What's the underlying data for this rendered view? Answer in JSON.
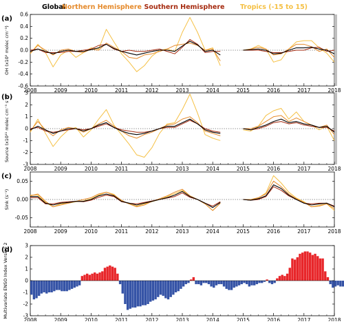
{
  "legend": [
    {
      "label": "Global",
      "color": "#000000"
    },
    {
      "label": "Northern Hemisphere",
      "color": "#e58a2b"
    },
    {
      "label": "Southern Hemisphere",
      "color": "#a52a0f"
    },
    {
      "label": "Tropics (-15 to 15)",
      "color": "#f5c044"
    }
  ],
  "colors": {
    "global": "#000000",
    "nh": "#e58a2b",
    "sh": "#a52a0f",
    "tropics": "#f5c044",
    "enso_pos": "#e8262a",
    "enso_neg": "#3553a6"
  },
  "x_ticks": [
    "2008",
    "2009",
    "2010",
    "2011",
    "2012",
    "2013",
    "2014",
    "2015",
    "2016",
    "2017",
    "2018"
  ],
  "chart_data": [
    {
      "panel": "(a)",
      "type": "line",
      "ylabel": "OH (x10⁵ molec cm⁻³)",
      "xlim": [
        2008,
        2018
      ],
      "ylim": [
        -0.6,
        0.6
      ],
      "yticks": [
        -0.6,
        -0.4,
        -0.2,
        0.0,
        0.2,
        0.4,
        0.6
      ],
      "ytick_labels": [
        "-0.6",
        "-0.4",
        "-0.2",
        "0.0",
        "0.2",
        "0.4",
        "0.6"
      ],
      "zero_line": true,
      "x": [
        2008.0,
        2008.25,
        2008.5,
        2008.75,
        2009.0,
        2009.25,
        2009.5,
        2009.75,
        2010.0,
        2010.25,
        2010.5,
        2010.75,
        2011.0,
        2011.25,
        2011.5,
        2011.75,
        2012.0,
        2012.25,
        2012.5,
        2012.75,
        2013.0,
        2013.25,
        2013.5,
        2013.75,
        2014.0,
        2014.25,
        null,
        2015.0,
        2015.25,
        2015.5,
        2015.75,
        2016.0,
        2016.25,
        2016.5,
        2016.75,
        2017.0,
        2017.25,
        2017.5,
        2017.75,
        2018.0
      ],
      "series": [
        {
          "name": "Global",
          "values": [
            -0.02,
            0.02,
            -0.02,
            -0.06,
            -0.02,
            0.0,
            -0.02,
            -0.02,
            0.01,
            0.04,
            0.1,
            0.03,
            -0.02,
            -0.05,
            -0.08,
            -0.05,
            -0.02,
            0.0,
            0.0,
            -0.02,
            0.07,
            0.15,
            0.09,
            -0.02,
            0.0,
            -0.08,
            null,
            0.0,
            0.01,
            0.02,
            0.0,
            -0.06,
            -0.05,
            0.0,
            0.04,
            0.04,
            0.05,
            0.02,
            0.0,
            -0.06
          ]
        },
        {
          "name": "Northern Hemisphere",
          "values": [
            -0.05,
            0.08,
            0.0,
            -0.08,
            0.0,
            0.02,
            -0.02,
            -0.04,
            0.02,
            0.0,
            0.12,
            0.05,
            -0.02,
            -0.12,
            -0.14,
            -0.08,
            -0.06,
            -0.02,
            0.02,
            0.08,
            0.1,
            0.12,
            0.08,
            0.0,
            0.02,
            -0.18,
            null,
            0.0,
            0.02,
            0.05,
            0.02,
            -0.08,
            -0.06,
            0.02,
            0.1,
            0.1,
            0.06,
            -0.02,
            0.02,
            -0.12
          ]
        },
        {
          "name": "Southern Hemisphere",
          "values": [
            0.0,
            0.02,
            -0.04,
            -0.04,
            -0.04,
            -0.02,
            -0.02,
            0.0,
            0.02,
            0.08,
            0.1,
            0.02,
            -0.02,
            0.0,
            -0.02,
            -0.02,
            0.0,
            0.02,
            -0.02,
            -0.06,
            0.05,
            0.18,
            0.1,
            -0.04,
            -0.02,
            -0.02,
            null,
            0.0,
            0.0,
            0.0,
            -0.02,
            -0.04,
            -0.04,
            -0.02,
            0.0,
            0.0,
            0.04,
            0.05,
            -0.02,
            0.0
          ]
        },
        {
          "name": "Tropics (-15 to 15)",
          "values": [
            -0.06,
            0.1,
            -0.04,
            -0.28,
            -0.08,
            0.0,
            -0.12,
            -0.04,
            0.04,
            0.02,
            0.35,
            0.14,
            -0.06,
            -0.2,
            -0.36,
            -0.26,
            -0.1,
            0.0,
            0.02,
            -0.02,
            0.3,
            0.55,
            0.3,
            0.0,
            0.04,
            -0.26,
            null,
            0.0,
            0.02,
            0.08,
            0.02,
            -0.2,
            -0.16,
            0.02,
            0.14,
            0.16,
            0.16,
            0.04,
            -0.05,
            -0.2
          ]
        }
      ]
    },
    {
      "panel": "(b)",
      "type": "line",
      "ylabel": "Source (x10¹¹ molec cm⁻³ s⁻¹)",
      "xlim": [
        2008,
        2018
      ],
      "ylim": [
        -3,
        3
      ],
      "yticks": [
        -3,
        -2,
        -1,
        0,
        1,
        2,
        3
      ],
      "ytick_labels": [
        "-3",
        "-2",
        "-1",
        "0",
        "1",
        "2",
        "3"
      ],
      "zero_line": true,
      "x": [
        2008.0,
        2008.25,
        2008.5,
        2008.75,
        2009.0,
        2009.25,
        2009.5,
        2009.75,
        2010.0,
        2010.25,
        2010.5,
        2010.75,
        2011.0,
        2011.25,
        2011.5,
        2011.75,
        2012.0,
        2012.25,
        2012.5,
        2012.75,
        2013.0,
        2013.25,
        2013.5,
        2013.75,
        2014.0,
        2014.25,
        null,
        2015.0,
        2015.25,
        2015.5,
        2015.75,
        2016.0,
        2016.25,
        2016.5,
        2016.75,
        2017.0,
        2017.25,
        2017.5,
        2017.75,
        2018.0
      ],
      "series": [
        {
          "name": "Global",
          "values": [
            -0.1,
            0.2,
            -0.1,
            -0.4,
            -0.2,
            0.0,
            0.0,
            -0.2,
            0.0,
            0.3,
            0.5,
            0.1,
            -0.2,
            -0.4,
            -0.5,
            -0.4,
            -0.2,
            0.0,
            0.2,
            0.2,
            0.5,
            0.8,
            0.4,
            -0.1,
            -0.3,
            -0.4,
            null,
            0.0,
            -0.1,
            0.1,
            0.3,
            0.6,
            0.8,
            0.5,
            0.6,
            0.4,
            0.3,
            0.1,
            0.2,
            -0.3
          ]
        },
        {
          "name": "Northern Hemisphere",
          "values": [
            -0.2,
            0.6,
            -0.1,
            -0.6,
            -0.1,
            0.1,
            0.0,
            -0.3,
            0.0,
            0.4,
            0.7,
            0.2,
            -0.2,
            -0.6,
            -0.8,
            -0.5,
            -0.3,
            0.0,
            0.3,
            0.4,
            0.8,
            1.0,
            0.5,
            -0.2,
            -0.4,
            -0.6,
            null,
            0.0,
            0.0,
            0.2,
            0.6,
            1.0,
            1.1,
            0.6,
            0.9,
            0.6,
            0.3,
            0.1,
            0.3,
            -0.5
          ]
        },
        {
          "name": "Southern Hemisphere",
          "values": [
            0.0,
            0.1,
            -0.2,
            -0.3,
            -0.2,
            -0.1,
            0.0,
            -0.1,
            0.0,
            0.2,
            0.4,
            0.1,
            -0.1,
            -0.2,
            -0.3,
            -0.3,
            -0.2,
            0.0,
            0.1,
            0.1,
            0.4,
            0.7,
            0.4,
            0.0,
            -0.2,
            -0.3,
            null,
            0.0,
            -0.1,
            0.0,
            0.2,
            0.5,
            0.6,
            0.4,
            0.5,
            0.3,
            0.2,
            0.1,
            0.1,
            -0.2
          ]
        },
        {
          "name": "Tropics (-15 to 15)",
          "values": [
            -0.3,
            0.8,
            -0.4,
            -1.5,
            -0.7,
            -0.1,
            0.1,
            -0.7,
            -0.1,
            0.8,
            1.6,
            0.3,
            -0.5,
            -1.3,
            -2.2,
            -2.4,
            -1.6,
            -0.4,
            0.4,
            0.5,
            1.6,
            2.9,
            1.3,
            -0.5,
            -0.8,
            -1.0,
            null,
            -0.1,
            -0.2,
            0.2,
            1.1,
            1.5,
            1.7,
            0.8,
            1.4,
            0.6,
            0.3,
            -0.1,
            0.2,
            -1.0
          ]
        }
      ]
    },
    {
      "panel": "(c)",
      "type": "line",
      "ylabel": "Sink (s⁻¹)",
      "xlim": [
        2008,
        2018
      ],
      "ylim": [
        -0.075,
        0.075
      ],
      "yticks": [
        -0.05,
        0.0,
        0.05
      ],
      "ytick_labels": [
        "-0.05",
        "0.00",
        "0.05"
      ],
      "zero_line": true,
      "x": [
        2008.0,
        2008.25,
        2008.5,
        2008.75,
        2009.0,
        2009.25,
        2009.5,
        2009.75,
        2010.0,
        2010.25,
        2010.5,
        2010.75,
        2011.0,
        2011.25,
        2011.5,
        2011.75,
        2012.0,
        2012.25,
        2012.5,
        2012.75,
        2013.0,
        2013.25,
        2013.5,
        2013.75,
        2014.0,
        2014.25,
        null,
        2015.0,
        2015.25,
        2015.5,
        2015.75,
        2016.0,
        2016.25,
        2016.5,
        2016.75,
        2017.0,
        2017.25,
        2017.5,
        2017.75,
        2018.0
      ],
      "series": [
        {
          "name": "Global",
          "values": [
            0.008,
            0.008,
            -0.01,
            -0.015,
            -0.01,
            -0.008,
            -0.005,
            -0.005,
            0.0,
            0.01,
            0.015,
            0.01,
            -0.005,
            -0.01,
            -0.015,
            -0.01,
            -0.005,
            0.0,
            0.005,
            0.012,
            0.022,
            0.008,
            0.0,
            -0.01,
            -0.022,
            -0.008,
            null,
            0.0,
            -0.002,
            0.002,
            0.01,
            0.04,
            0.03,
            0.012,
            0.0,
            -0.01,
            -0.015,
            -0.012,
            -0.01,
            -0.02
          ]
        },
        {
          "name": "Northern Hemisphere",
          "values": [
            0.01,
            0.015,
            -0.005,
            -0.02,
            -0.015,
            -0.01,
            -0.005,
            0.0,
            0.005,
            0.015,
            0.02,
            0.012,
            -0.002,
            -0.012,
            -0.02,
            -0.015,
            -0.005,
            0.002,
            0.01,
            0.02,
            0.028,
            0.01,
            0.0,
            -0.012,
            -0.03,
            -0.01,
            null,
            0.0,
            0.0,
            0.005,
            0.015,
            0.05,
            0.035,
            0.015,
            0.002,
            -0.008,
            -0.02,
            -0.018,
            -0.012,
            -0.025
          ]
        },
        {
          "name": "Southern Hemisphere",
          "values": [
            0.005,
            0.005,
            -0.012,
            -0.012,
            -0.008,
            -0.006,
            -0.005,
            -0.006,
            -0.002,
            0.006,
            0.012,
            0.008,
            -0.006,
            -0.01,
            -0.012,
            -0.008,
            -0.004,
            0.0,
            0.004,
            0.008,
            0.018,
            0.006,
            0.0,
            -0.01,
            -0.018,
            -0.006,
            null,
            0.0,
            -0.002,
            0.0,
            0.008,
            0.035,
            0.025,
            0.01,
            0.0,
            -0.01,
            -0.012,
            -0.01,
            -0.01,
            -0.018
          ]
        },
        {
          "name": "Tropics (-15 to 15)",
          "values": [
            0.012,
            0.012,
            -0.008,
            -0.02,
            -0.012,
            -0.01,
            -0.006,
            -0.004,
            0.002,
            0.012,
            0.02,
            0.014,
            -0.004,
            -0.012,
            -0.018,
            -0.012,
            -0.006,
            0.0,
            0.008,
            0.016,
            0.025,
            0.01,
            0.0,
            -0.012,
            -0.03,
            -0.01,
            null,
            0.0,
            -0.002,
            0.004,
            0.018,
            0.065,
            0.045,
            0.02,
            0.004,
            -0.006,
            -0.02,
            -0.016,
            -0.012,
            -0.03
          ]
        }
      ]
    },
    {
      "panel": "(d)",
      "type": "bar",
      "ylabel": "Multivariate ENSO Index Version 2",
      "xlim": [
        2008,
        2018
      ],
      "ylim": [
        -3,
        3
      ],
      "yticks": [
        -3,
        -2,
        -1,
        0,
        1,
        2,
        3
      ],
      "ytick_labels": [
        "-3",
        "-2",
        "-1",
        "0",
        "1",
        "2",
        "3"
      ],
      "bar_start": 2008.0,
      "bar_step": 0.0833,
      "values": [
        -1.2,
        -1.6,
        -1.5,
        -1.3,
        -1.1,
        -1.0,
        -1.1,
        -1.0,
        -1.0,
        -0.9,
        -0.8,
        -0.8,
        -0.9,
        -0.9,
        -0.9,
        -0.8,
        -0.7,
        -0.6,
        -0.5,
        -0.4,
        0.4,
        0.5,
        0.6,
        0.5,
        0.6,
        0.7,
        0.6,
        0.7,
        0.8,
        1.1,
        1.2,
        1.3,
        1.2,
        1.1,
        0.6,
        -0.3,
        -1.1,
        -2.0,
        -2.5,
        -2.4,
        -2.3,
        -2.3,
        -2.2,
        -2.2,
        -2.1,
        -2.1,
        -2.0,
        -1.8,
        -1.7,
        -1.6,
        -1.4,
        -1.2,
        -1.3,
        -1.5,
        -1.6,
        -1.4,
        -1.2,
        -1.0,
        -0.9,
        -0.7,
        -0.5,
        -0.3,
        -0.2,
        0.1,
        0.3,
        -0.3,
        -0.3,
        -0.4,
        -0.2,
        -0.2,
        -0.3,
        -0.5,
        -0.6,
        -0.4,
        -0.3,
        -0.3,
        -0.5,
        -0.7,
        -0.8,
        -0.8,
        -0.6,
        -0.5,
        -0.4,
        -0.3,
        -0.2,
        -0.3,
        -0.5,
        -0.4,
        -0.4,
        -0.3,
        -0.2,
        -0.2,
        -0.1,
        0.1,
        -0.2,
        -0.3,
        -0.2,
        0.2,
        0.4,
        0.5,
        0.4,
        0.6,
        1.1,
        1.9,
        1.8,
        2.0,
        2.3,
        2.4,
        2.5,
        2.5,
        2.4,
        2.2,
        2.3,
        2.1,
        1.9,
        1.9,
        0.8,
        0.3,
        -0.3,
        -0.6,
        -0.5,
        -0.4,
        -0.5,
        -0.5,
        -0.4,
        -0.3,
        -0.2,
        -0.3,
        -0.4,
        -0.6,
        -0.4,
        -0.2,
        -0.1,
        0.3,
        -0.3,
        -0.3,
        -0.7,
        -0.9,
        -0.9,
        -0.8,
        -0.7
      ]
    }
  ]
}
